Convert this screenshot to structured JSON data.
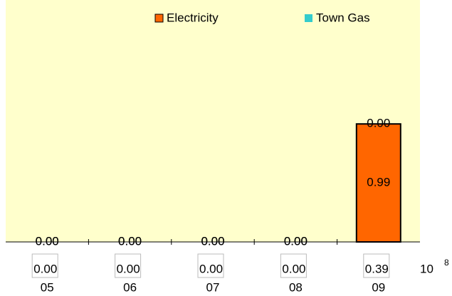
{
  "chart_data": {
    "type": "bar",
    "stacked": true,
    "categories": [
      "05",
      "06",
      "07",
      "08",
      "09"
    ],
    "series": [
      {
        "name": "Electricity",
        "color": "#ff6600",
        "values": [
          0,
          0,
          0,
          0,
          0.99
        ],
        "value_labels": [
          "0.00",
          "0.00",
          "0.00",
          "0.00",
          "0.99"
        ]
      },
      {
        "name": "Town Gas",
        "color": "#33cccc",
        "values": [
          0,
          0,
          0,
          0,
          0
        ],
        "value_labels": [
          "0.00",
          "0.00",
          "0.00",
          "0.00",
          "0.00"
        ]
      }
    ],
    "row_values": [
      0,
      0,
      0,
      0,
      0.39
    ],
    "row_value_labels": [
      "0.00",
      "0.00",
      "0.00",
      "0.00",
      "0.39"
    ],
    "unit_base": "10",
    "unit_exponent": "8",
    "ylim": [
      0,
      2.03
    ],
    "background": "#ffffcc"
  }
}
